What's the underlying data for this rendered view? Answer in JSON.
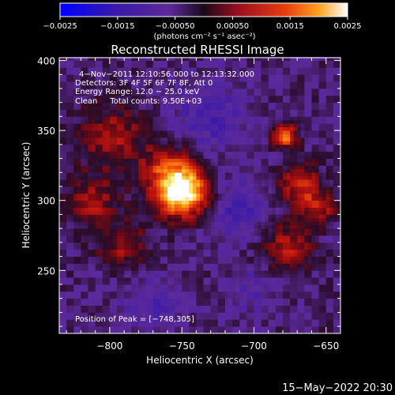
{
  "chart_data": {
    "type": "heatmap",
    "title": "Reconstructed RHESSI Image",
    "xlabel": "Heliocentric X (arcsec)",
    "ylabel": "Heliocentric Y (arcsec)",
    "xlim": [
      -835,
      -640
    ],
    "ylim": [
      205,
      402
    ],
    "x_ticks": [
      -800,
      -750,
      -700,
      -650
    ],
    "x_tick_labels": [
      "−800",
      "−750",
      "−700",
      "−650"
    ],
    "y_ticks": [
      250,
      300,
      350,
      400
    ],
    "y_tick_labels": [
      "250",
      "300",
      "350",
      "400"
    ],
    "colorbar": {
      "range": [
        -0.0025,
        0.0025
      ],
      "ticks": [
        -0.0025,
        -0.0015,
        -0.0005,
        0.0005,
        0.0015,
        0.0025
      ],
      "tick_labels": [
        "−0.0025",
        "−0.0015",
        "−0.00050",
        "0.00050",
        "0.0015",
        "0.0025"
      ],
      "unit_label": "(photons cm⁻² s⁻¹ asec⁻²)"
    },
    "annotations": [
      "4−Nov−2011 12:10:56.000 to 12:13:32.000",
      "Detectors: 3F 4F 5F 6F 7F 8F, Att 0",
      "Energy Range: 12.0 − 25.0 keV",
      "Clean     Total counts: 9.50E+03"
    ],
    "peak_label": "Position of Peak = [−748,305]",
    "peak": [
      -748,
      305
    ],
    "sources": [
      {
        "x": -748,
        "y": 305,
        "sigma": 12,
        "amplitude": 0.0025
      },
      {
        "x": -758,
        "y": 318,
        "sigma": 14,
        "amplitude": 0.0016
      },
      {
        "x": -798,
        "y": 345,
        "sigma": 16,
        "amplitude": 0.0011
      },
      {
        "x": -812,
        "y": 300,
        "sigma": 12,
        "amplitude": 0.0011
      },
      {
        "x": -790,
        "y": 268,
        "sigma": 12,
        "amplitude": 0.001
      },
      {
        "x": -678,
        "y": 346,
        "sigma": 6,
        "amplitude": 0.0019
      },
      {
        "x": -668,
        "y": 312,
        "sigma": 10,
        "amplitude": 0.0014
      },
      {
        "x": -677,
        "y": 268,
        "sigma": 12,
        "amplitude": 0.0012
      },
      {
        "x": -655,
        "y": 295,
        "sigma": 8,
        "amplitude": 0.0012
      },
      {
        "x": -730,
        "y": 360,
        "sigma": 18,
        "amplitude": -0.0008
      },
      {
        "x": -712,
        "y": 295,
        "sigma": 14,
        "amplitude": -0.0009
      },
      {
        "x": -770,
        "y": 225,
        "sigma": 16,
        "amplitude": -0.0006
      },
      {
        "x": -700,
        "y": 235,
        "sigma": 12,
        "amplitude": -0.0005
      }
    ],
    "timestamp": "15−May−2022 20:30"
  }
}
